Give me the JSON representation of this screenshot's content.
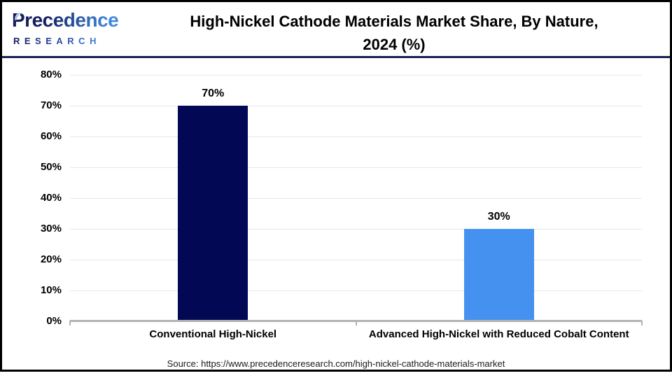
{
  "header": {
    "logo": {
      "name": "Precedence",
      "subtitle": "RESEARCH"
    },
    "title_line1": "High-Nickel Cathode Materials Market Share, By Nature,",
    "title_line2": "2024 (%)"
  },
  "chart_data": {
    "type": "bar",
    "title": "High-Nickel Cathode Materials Market Share, By Nature, 2024 (%)",
    "categories": [
      "Conventional High-Nickel",
      "Advanced High-Nickel with Reduced Cobalt Content"
    ],
    "values": [
      70,
      30
    ],
    "data_labels": [
      "70%",
      "30%"
    ],
    "bar_colors": [
      "#020853",
      "#4591ef"
    ],
    "ytick_labels": [
      "0%",
      "10%",
      "20%",
      "30%",
      "40%",
      "50%",
      "60%",
      "70%",
      "80%"
    ],
    "ylim": [
      0,
      80
    ],
    "ytick_interval": 10,
    "xlabel": "",
    "ylabel": "",
    "grid": true,
    "legend": "none"
  },
  "footer": {
    "source": "Source: https://www.precedenceresearch.com/high-nickel-cathode-materials-market"
  },
  "theme": {
    "frame": "#000000",
    "divider": "#1a2150",
    "grid": "#e7e7e7",
    "axis": "#b3b3b3",
    "logo_navy": "#151e5e",
    "logo_blue": "#3f87de"
  }
}
